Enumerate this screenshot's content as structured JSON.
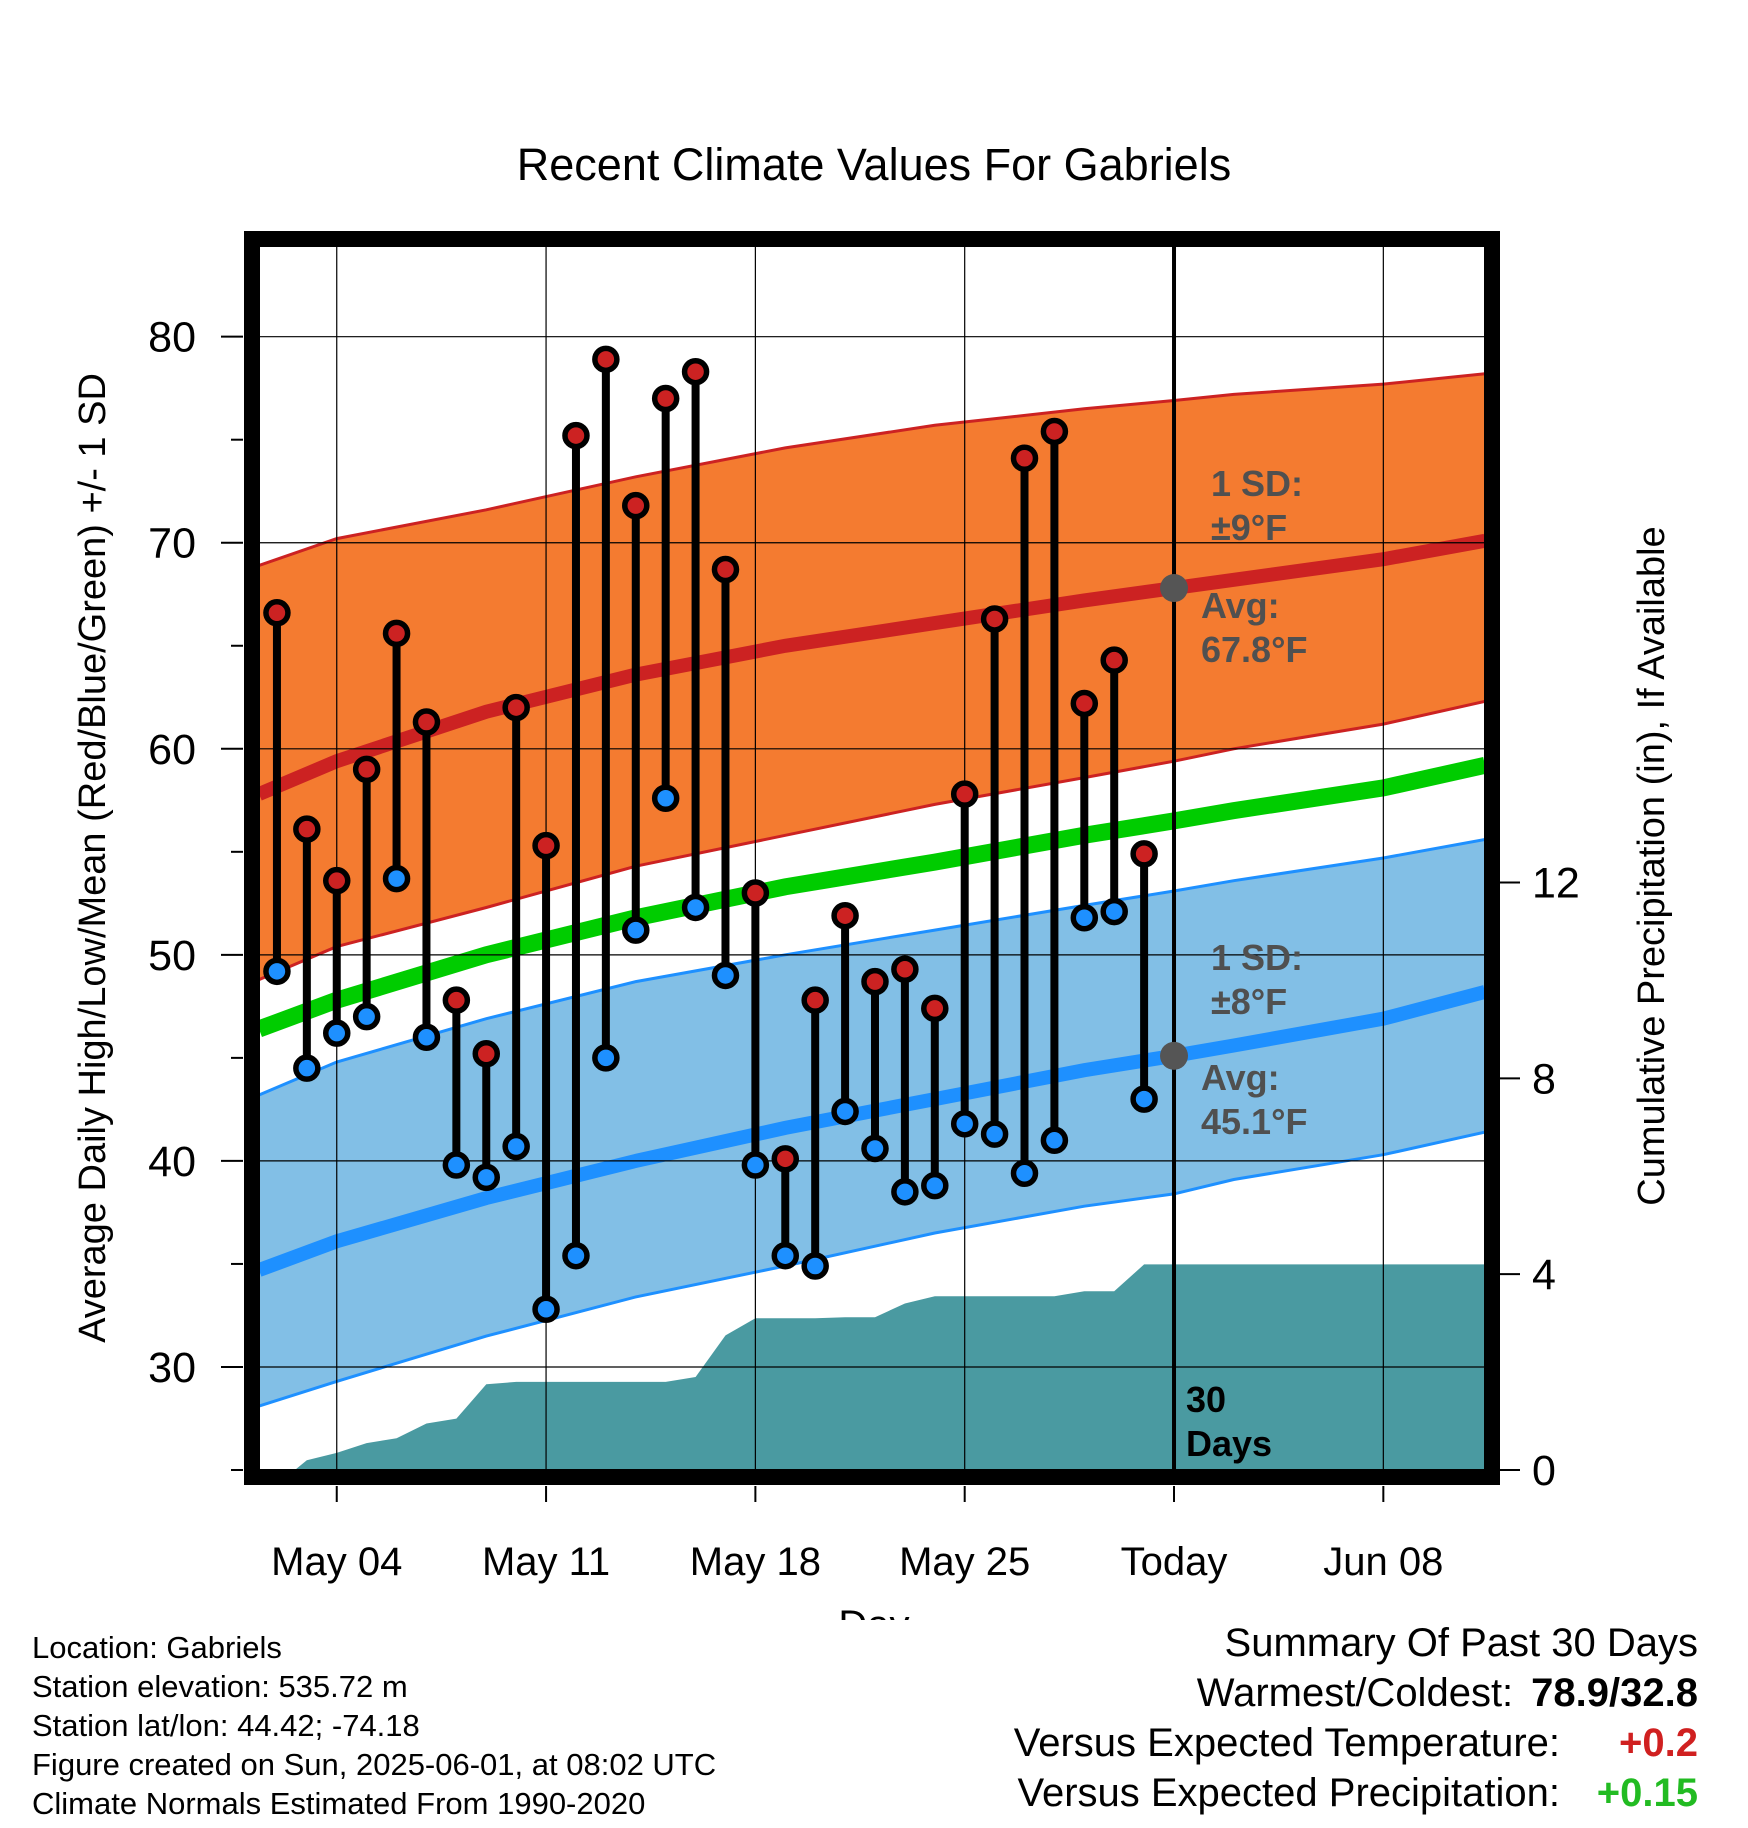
{
  "chart_data": {
    "type": "line",
    "title": "Recent Climate Values For Gabriels",
    "xlabel": "Day",
    "ylabel": "Average Daily High/Low/Mean (Red/Blue/Green) +/- 1 SD",
    "y2label": "Cumulative Precipitation (in), If Available",
    "ylim": [
      25,
      84.4
    ],
    "y2lim": [
      0,
      25
    ],
    "xlim": [
      -2.6,
      38.4
    ],
    "y_ticks": [
      30,
      40,
      50,
      60,
      70,
      80
    ],
    "y2_ticks": [
      0,
      4,
      8,
      12
    ],
    "x_ticks": [
      {
        "day": 0,
        "label": "May 04"
      },
      {
        "day": 7,
        "label": "May 11"
      },
      {
        "day": 14,
        "label": "May 18"
      },
      {
        "day": 21,
        "label": "May 25"
      },
      {
        "day": 28,
        "label": "Today"
      },
      {
        "day": 35,
        "label": "Jun 08"
      }
    ],
    "today_day": 28,
    "today_label": "30 Days",
    "grid": true,
    "observed": {
      "days": [
        -2,
        -1,
        0,
        1,
        2,
        3,
        4,
        5,
        6,
        7,
        8,
        9,
        10,
        11,
        12,
        13,
        14,
        15,
        16,
        17,
        18,
        19,
        20,
        21,
        22,
        23,
        24,
        25,
        26,
        27
      ],
      "highs": [
        66.6,
        56.1,
        53.6,
        59.0,
        65.6,
        61.3,
        47.8,
        45.2,
        62.0,
        55.3,
        75.2,
        78.9,
        71.8,
        77.0,
        78.3,
        68.7,
        53.0,
        40.1,
        47.8,
        51.9,
        48.7,
        49.3,
        47.4,
        57.8,
        66.3,
        74.1,
        75.4,
        62.2,
        64.3,
        54.9
      ],
      "lows": [
        49.2,
        44.5,
        46.2,
        47.0,
        53.7,
        46.0,
        39.8,
        39.2,
        40.7,
        32.8,
        35.4,
        45.0,
        51.2,
        57.6,
        52.3,
        49.0,
        39.8,
        35.4,
        34.9,
        42.4,
        40.6,
        38.5,
        38.8,
        41.8,
        41.3,
        39.4,
        41.0,
        51.8,
        52.1,
        43.0
      ]
    },
    "normals": {
      "days": [
        -2.6,
        0,
        5,
        10,
        15,
        20,
        25,
        28,
        30,
        35,
        38.4
      ],
      "high_mean": [
        57.8,
        59.4,
        61.8,
        63.6,
        65.0,
        66.1,
        67.2,
        67.8,
        68.2,
        69.2,
        70.1
      ],
      "high_upper": [
        68.9,
        70.2,
        71.6,
        73.2,
        74.6,
        75.7,
        76.5,
        76.9,
        77.2,
        77.7,
        78.2
      ],
      "high_lower": [
        48.8,
        50.4,
        52.3,
        54.3,
        55.8,
        57.3,
        58.6,
        59.4,
        60.0,
        61.2,
        62.3
      ],
      "low_mean": [
        34.7,
        36.1,
        38.2,
        40.0,
        41.6,
        43.0,
        44.4,
        45.1,
        45.6,
        46.9,
        48.2
      ],
      "low_upper": [
        43.2,
        44.8,
        46.9,
        48.7,
        50.0,
        51.2,
        52.4,
        53.1,
        53.6,
        54.7,
        55.6
      ],
      "low_lower": [
        28.1,
        29.3,
        31.5,
        33.4,
        34.9,
        36.5,
        37.8,
        38.4,
        39.1,
        40.3,
        41.4
      ],
      "mean": [
        46.4,
        47.8,
        50.0,
        51.8,
        53.3,
        54.5,
        55.8,
        56.5,
        57.0,
        58.1,
        59.2
      ]
    },
    "precip": {
      "days": [
        -1.4,
        -1,
        0,
        1,
        2,
        3,
        4,
        5,
        6,
        7,
        8,
        9,
        10,
        11,
        12,
        13,
        14,
        15,
        16,
        17,
        18,
        19,
        20,
        21,
        22,
        23,
        24,
        25,
        26,
        27,
        28,
        38.4
      ],
      "values": [
        0,
        0.2,
        0.35,
        0.55,
        0.65,
        0.95,
        1.05,
        1.75,
        1.8,
        1.8,
        1.8,
        1.8,
        1.8,
        1.8,
        1.9,
        2.75,
        3.1,
        3.1,
        3.1,
        3.12,
        3.12,
        3.4,
        3.55,
        3.55,
        3.55,
        3.55,
        3.55,
        3.65,
        3.65,
        4.2,
        4.2,
        4.2
      ]
    },
    "annotations": {
      "high_sd_label": "1 SD:",
      "high_sd_value": "±9°F",
      "high_avg_label": "Avg:",
      "high_avg_value": "67.8°F",
      "high_avg_at_today": 67.8,
      "low_sd_label": "1 SD:",
      "low_sd_value": "±8°F",
      "low_avg_label": "Avg:",
      "low_avg_value": "45.1°F",
      "low_avg_at_today": 45.1
    },
    "colors": {
      "high_band": "#f47b30",
      "high_line": "#cc2222",
      "low_band": "#82bfe6",
      "low_line": "#1e90ff",
      "mean_line": "#00cc00",
      "precip": "#4a9aa1",
      "high_dot": "#cc2222",
      "low_dot": "#1e90ff",
      "annotation_text": "#505050"
    }
  },
  "info": {
    "location": "Location: Gabriels",
    "elevation": "Station elevation: 535.72 m",
    "latlon": "Station lat/lon: 44.42; -74.18",
    "created": "Figure created on Sun, 2025-06-01, at 08:02 UTC",
    "normals": "Climate Normals Estimated From 1990-2020"
  },
  "summary": {
    "title": "Summary Of Past 30 Days",
    "warm_cold_label": "Warmest/Coldest:",
    "warm_cold_value": "78.9/32.8",
    "temp_label": "Versus Expected Temperature:",
    "temp_value": "+0.2",
    "precip_label": "Versus Expected Precipitation:",
    "precip_value": "+0.15"
  }
}
